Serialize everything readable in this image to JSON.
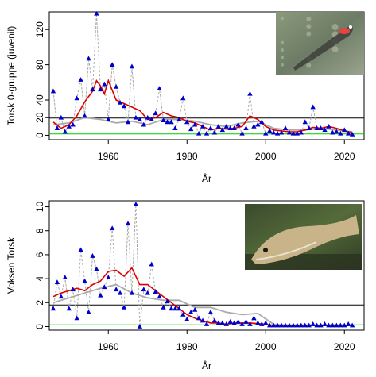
{
  "chart_data": [
    {
      "type": "line",
      "ylabel": "Torsk 0-gruppe (juvenil)",
      "xlabel": "År",
      "xlim": [
        1945,
        2025
      ],
      "ylim": [
        -5,
        140
      ],
      "x_ticks": [
        1960,
        1980,
        2000,
        2020
      ],
      "y_ticks": [
        0,
        20,
        40,
        80,
        120
      ],
      "hlines": [
        {
          "value": 19.5,
          "color": "#000000"
        },
        {
          "value": 1.5,
          "color": "#00cc00"
        }
      ],
      "photo": "juvenile-cod-photo",
      "series": [
        {
          "style": "blue triangles joined by grey dashed line",
          "color": "#0000cc",
          "x": [
            1946,
            1947,
            1948,
            1949,
            1950,
            1951,
            1952,
            1953,
            1954,
            1955,
            1956,
            1957,
            1958,
            1959,
            1960,
            1961,
            1962,
            1963,
            1964,
            1965,
            1966,
            1967,
            1968,
            1969,
            1970,
            1971,
            1972,
            1973,
            1974,
            1975,
            1976,
            1977,
            1978,
            1979,
            1980,
            1981,
            1982,
            1983,
            1984,
            1985,
            1986,
            1987,
            1988,
            1989,
            1990,
            1991,
            1992,
            1993,
            1994,
            1995,
            1996,
            1997,
            1998,
            1999,
            2000,
            2001,
            2002,
            2003,
            2004,
            2005,
            2006,
            2007,
            2008,
            2009,
            2010,
            2011,
            2012,
            2013,
            2014,
            2015,
            2016,
            2017,
            2018,
            2019,
            2020,
            2021,
            2022
          ],
          "y": [
            50,
            8,
            20,
            4,
            10,
            12,
            42,
            63,
            22,
            87,
            52,
            138,
            52,
            58,
            18,
            80,
            55,
            37,
            33,
            15,
            78,
            20,
            18,
            12,
            20,
            18,
            25,
            53,
            17,
            15,
            15,
            8,
            18,
            42,
            15,
            7,
            12,
            2,
            10,
            2,
            8,
            3,
            10,
            6,
            10,
            8,
            8,
            12,
            2,
            8,
            47,
            10,
            12,
            15,
            2,
            5,
            3,
            2,
            3,
            8,
            3,
            2,
            2,
            3,
            15,
            8,
            32,
            8,
            8,
            6,
            10,
            3,
            4,
            2,
            6,
            2,
            1
          ]
        },
        {
          "name": "",
          "style": "red running mean",
          "color": "#dd0000",
          "x": [
            1946,
            1948,
            1950,
            1952,
            1954,
            1956,
            1957,
            1958,
            1959,
            1960,
            1962,
            1964,
            1966,
            1968,
            1970,
            1972,
            1974,
            1976,
            1978,
            1980,
            1982,
            1984,
            1986,
            1988,
            1990,
            1992,
            1994,
            1996,
            1998,
            2000,
            2002,
            2004,
            2006,
            2008,
            2010,
            2012,
            2014,
            2016,
            2018,
            2020,
            2022
          ],
          "y": [
            15,
            8,
            12,
            22,
            38,
            50,
            62,
            56,
            47,
            62,
            40,
            36,
            32,
            28,
            18,
            20,
            26,
            22,
            20,
            16,
            14,
            10,
            6,
            8,
            7,
            8,
            10,
            22,
            18,
            10,
            6,
            5,
            4,
            4,
            6,
            9,
            8,
            10,
            8,
            5,
            3
          ]
        },
        {
          "name": "",
          "style": "grey running mean",
          "color": "#aaaaaa",
          "x": [
            1946,
            1950,
            1954,
            1958,
            1962,
            1966,
            1970,
            1974,
            1978,
            1982,
            1986,
            1990,
            1994,
            1998,
            2002,
            2006,
            2010,
            2014,
            2018,
            2022
          ],
          "y": [
            12,
            14,
            20,
            18,
            14,
            16,
            12,
            18,
            18,
            16,
            12,
            10,
            14,
            16,
            8,
            6,
            6,
            8,
            6,
            4
          ]
        }
      ]
    },
    {
      "type": "line",
      "ylabel": "Voksen Torsk",
      "xlabel": "År",
      "xlim": [
        1945,
        2025
      ],
      "ylim": [
        -0.3,
        10.5
      ],
      "x_ticks": [
        1960,
        1980,
        2000,
        2020
      ],
      "y_ticks": [
        0,
        2,
        4,
        6,
        8,
        10
      ],
      "hlines": [
        {
          "value": 1.8,
          "color": "#000000"
        },
        {
          "value": 0.15,
          "color": "#00cc00"
        }
      ],
      "photo": "adult-cod-photo",
      "series": [
        {
          "style": "blue triangles joined by grey dashed line",
          "color": "#0000cc",
          "x": [
            1946,
            1947,
            1948,
            1949,
            1950,
            1951,
            1952,
            1953,
            1954,
            1955,
            1956,
            1957,
            1958,
            1959,
            1960,
            1961,
            1962,
            1963,
            1964,
            1965,
            1966,
            1967,
            1968,
            1969,
            1970,
            1971,
            1972,
            1973,
            1974,
            1975,
            1976,
            1977,
            1978,
            1979,
            1980,
            1981,
            1982,
            1983,
            1984,
            1985,
            1986,
            1987,
            1988,
            1989,
            1990,
            1991,
            1992,
            1993,
            1994,
            1995,
            1996,
            1997,
            1998,
            1999,
            2000,
            2001,
            2002,
            2003,
            2004,
            2005,
            2006,
            2007,
            2008,
            2009,
            2010,
            2011,
            2012,
            2013,
            2014,
            2015,
            2016,
            2017,
            2018,
            2019,
            2020,
            2021,
            2022
          ],
          "y": [
            1.5,
            3.7,
            2.5,
            4.1,
            1.5,
            3.1,
            0.7,
            6.4,
            3.8,
            1.2,
            5.9,
            4.8,
            2.6,
            3.3,
            4.1,
            8.2,
            3.1,
            2.8,
            1.6,
            8.6,
            2.8,
            10.2,
            0.0,
            3.1,
            2.8,
            5.2,
            2.9,
            2.5,
            1.6,
            2.1,
            1.5,
            1.5,
            1.5,
            1.0,
            0.6,
            1.2,
            1.4,
            0.7,
            0.5,
            0.2,
            1.2,
            0.5,
            0.3,
            0.3,
            0.2,
            0.4,
            0.3,
            0.4,
            0.2,
            0.4,
            0.2,
            0.7,
            0.3,
            0.2,
            0.3,
            0.1,
            0.1,
            0.1,
            0.1,
            0.1,
            0.1,
            0.1,
            0.1,
            0.1,
            0.1,
            0.1,
            0.2,
            0.1,
            0.1,
            0.2,
            0.1,
            0.1,
            0.1,
            0.1,
            0.1,
            0.2,
            0.1
          ]
        },
        {
          "name": "",
          "style": "red running mean",
          "color": "#dd0000",
          "x": [
            1946,
            1948,
            1950,
            1952,
            1954,
            1956,
            1958,
            1960,
            1962,
            1964,
            1966,
            1968,
            1970,
            1972,
            1974,
            1976,
            1978,
            1980,
            1982,
            1984,
            1986,
            1988,
            1990,
            1992,
            1994,
            1996,
            1998,
            2000,
            2002,
            2004,
            2006,
            2008,
            2010,
            2012,
            2014,
            2016,
            2018,
            2020,
            2022
          ],
          "y": [
            2.5,
            2.8,
            3.0,
            3.2,
            3.0,
            3.5,
            3.8,
            4.6,
            4.7,
            4.2,
            4.9,
            3.5,
            3.5,
            3.0,
            2.5,
            2.0,
            1.5,
            1.0,
            0.7,
            0.5,
            0.3,
            0.3,
            0.2,
            0.3,
            0.3,
            0.3,
            0.25,
            0.2,
            0.1,
            0.1,
            0.1,
            0.1,
            0.1,
            0.1,
            0.1,
            0.1,
            0.1,
            0.1,
            0.1
          ]
        },
        {
          "name": "",
          "style": "grey running mean",
          "color": "#aaaaaa",
          "x": [
            1946,
            1950,
            1954,
            1958,
            1962,
            1966,
            1970,
            1974,
            1978,
            1982,
            1986,
            1990,
            1994,
            1998,
            2002,
            2006,
            2010,
            2014,
            2018,
            2022
          ],
          "y": [
            2.0,
            2.4,
            2.8,
            3.2,
            3.5,
            2.8,
            2.4,
            2.2,
            2.2,
            1.6,
            1.6,
            1.2,
            1.0,
            1.1,
            0.2,
            0.1,
            0.1,
            0.1,
            0.1,
            0.1
          ]
        }
      ]
    }
  ]
}
